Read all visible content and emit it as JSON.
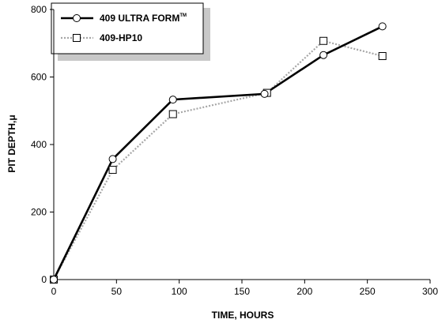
{
  "chart_data": {
    "type": "line",
    "xlabel": "TIME, HOURS",
    "ylabel": "PIT DEPTH,",
    "ylabel_unit": "μ",
    "xlim": [
      0,
      300
    ],
    "ylim": [
      0,
      800
    ],
    "xticks": [
      "0",
      "50",
      "100",
      "150",
      "200",
      "250",
      "300"
    ],
    "yticks": [
      "0",
      "200",
      "400",
      "600",
      "800"
    ],
    "grid": false,
    "legend_position": "top-left",
    "series": [
      {
        "name": "409 ULTRA FORM",
        "name_mark": "TM",
        "color": "#000000",
        "marker": "circle",
        "line": "solid",
        "points": [
          [
            0,
            0
          ],
          [
            47,
            357
          ],
          [
            95,
            533
          ],
          [
            168,
            550
          ],
          [
            215,
            665
          ],
          [
            262,
            750
          ]
        ]
      },
      {
        "name": "409-HP10",
        "color": "#a6a6a6",
        "marker": "square",
        "line": "dotted",
        "points": [
          [
            0,
            0
          ],
          [
            47,
            325
          ],
          [
            95,
            490
          ],
          [
            170,
            553
          ],
          [
            215,
            707
          ],
          [
            262,
            662
          ]
        ]
      }
    ]
  }
}
